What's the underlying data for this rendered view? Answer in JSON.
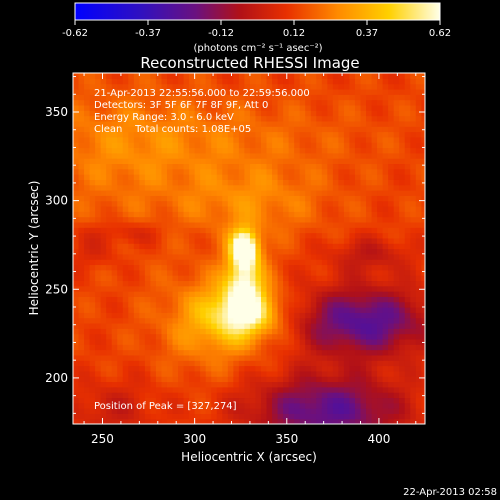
{
  "chart_data": {
    "type": "heatmap",
    "title": "Reconstructed RHESSI Image",
    "colorbar": {
      "ticks": [
        "-0.62",
        "-0.37",
        "-0.12",
        "0.12",
        "0.37",
        "0.62"
      ],
      "range": [
        -0.62,
        0.62
      ],
      "unit_label": "(photons cm⁻² s⁻¹ asec⁻²)"
    },
    "xlabel": "Heliocentric X (arcsec)",
    "ylabel": "Heliocentric Y (arcsec)",
    "xticks": [
      "250",
      "300",
      "350",
      "400"
    ],
    "yticks": [
      "200",
      "250",
      "300",
      "350"
    ],
    "xlim": [
      234,
      425
    ],
    "ylim": [
      174,
      372
    ],
    "annotations": [
      "21-Apr-2013 22:55:56.000 to 22:59:56.000",
      "Detectors: 3F 5F 6F 7F 8F 9F, Att 0",
      "Energy Range: 3.0 - 6.0 keV",
      "Clean    Total counts: 1.08E+05"
    ],
    "peak_label": "Position of Peak = [327,274]",
    "peak": [
      327,
      274
    ],
    "footer_date": "22-Apr-2013 02:58"
  }
}
